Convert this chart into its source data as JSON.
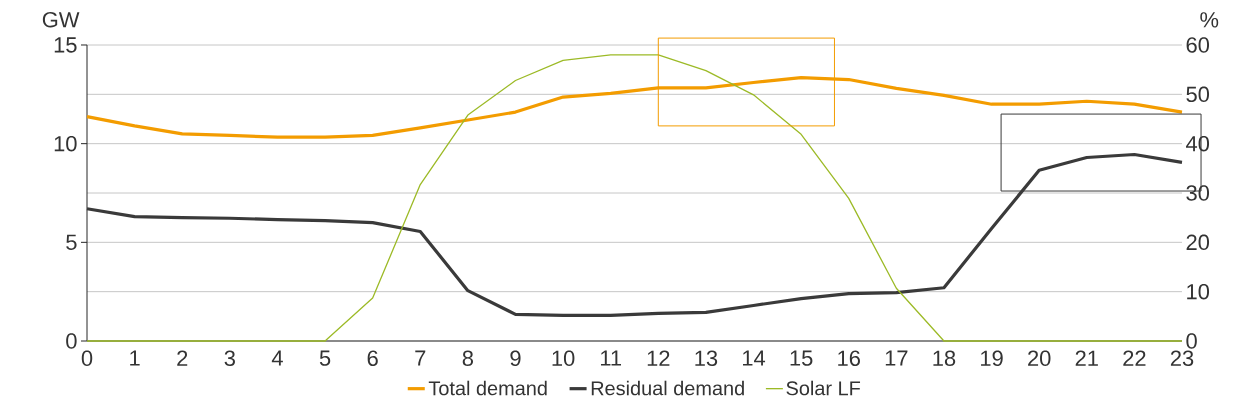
{
  "chart_data": {
    "type": "line",
    "ylabel": "GW",
    "y2label": "%",
    "categories": [
      "0",
      "1",
      "2",
      "3",
      "4",
      "5",
      "6",
      "7",
      "8",
      "9",
      "10",
      "11",
      "12",
      "13",
      "14",
      "15",
      "16",
      "17",
      "18",
      "19",
      "20",
      "21",
      "22",
      "23"
    ],
    "series": [
      {
        "name": "Total demand",
        "color": "#f39c00",
        "values": [
          11.37,
          10.9,
          10.5,
          10.42,
          10.33,
          10.33,
          10.42,
          10.8,
          11.2,
          11.6,
          12.36,
          12.55,
          12.83,
          12.83,
          13.1,
          13.35,
          13.25,
          12.8,
          12.45,
          12.0,
          12.0,
          12.15,
          12.0,
          11.6
        ]
      },
      {
        "name": "Residual demand",
        "color": "#3a3a3a",
        "values": [
          6.7,
          6.3,
          6.25,
          6.22,
          6.15,
          6.1,
          6.0,
          5.55,
          2.55,
          1.35,
          1.3,
          1.3,
          1.4,
          1.45,
          1.8,
          2.15,
          2.4,
          2.45,
          2.7,
          5.7,
          8.65,
          9.3,
          9.45,
          9.05
        ]
      },
      {
        "name": "Solar LF",
        "color": "#9cba26",
        "axis": "y2",
        "values": [
          0,
          0,
          0,
          0,
          0,
          0,
          8.7,
          31.7,
          45.8,
          52.8,
          56.9,
          58,
          58,
          54.8,
          49.9,
          41.9,
          28.9,
          10.7,
          0,
          0,
          0,
          0,
          0,
          0
        ]
      }
    ],
    "ylim": [
      0,
      15
    ],
    "yticks": [
      0,
      5,
      10,
      15
    ],
    "y2lim": [
      0,
      60
    ],
    "y2ticks": [
      0,
      10,
      20,
      30,
      40,
      50,
      60
    ],
    "grid": "y2",
    "legend": "bottom",
    "marker": "none",
    "line_style": "solid"
  }
}
